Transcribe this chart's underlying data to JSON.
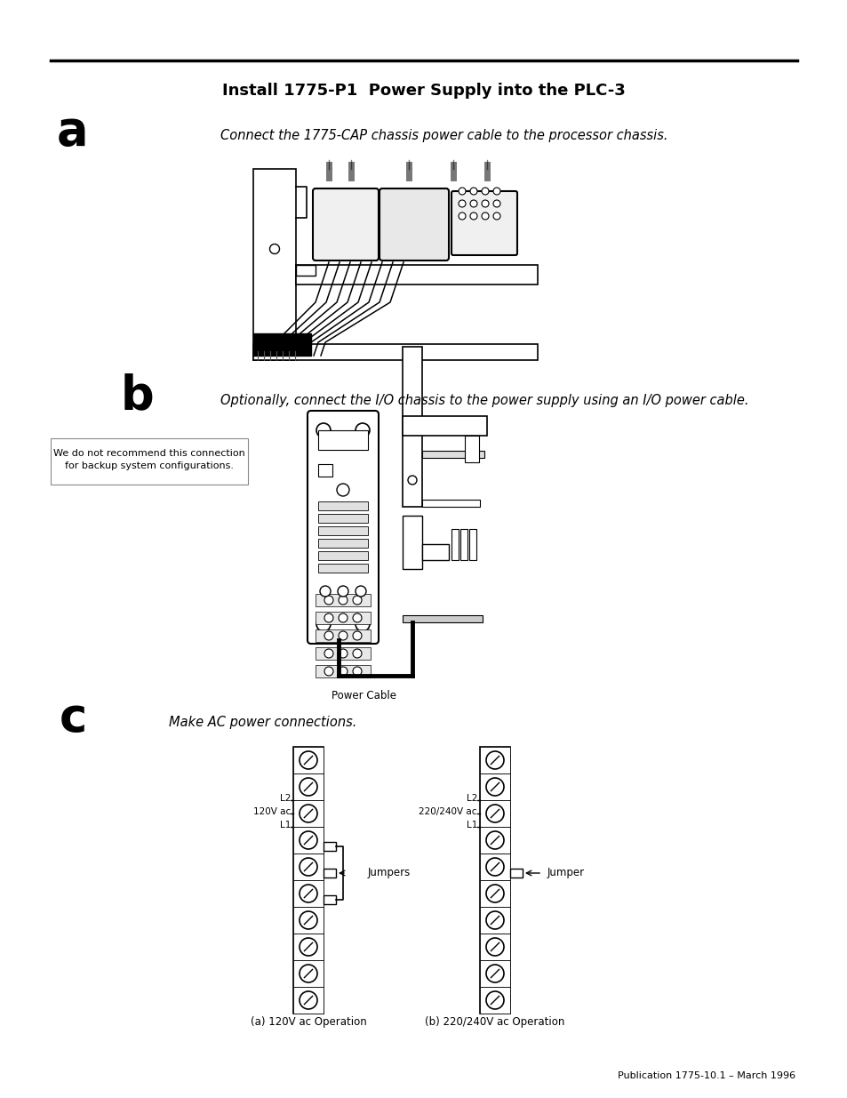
{
  "title": "Install 1775-P1  Power Supply into the PLC-3",
  "bg_color": "#ffffff",
  "text_color": "#000000",
  "section_a_label": "a",
  "section_a_text": "Connect the 1775-CAP chassis power cable to the processor chassis.",
  "section_b_label": "b",
  "section_b_text": "Optionally, connect the I/O chassis to the power supply using an I/O power cable.",
  "section_b_note": "We do not recommend this connection\nfor backup system configurations.",
  "section_c_label": "c",
  "section_c_text": "Make AC power connections.",
  "power_cable_label": "Power Cable",
  "caption_120v": "(a) 120V ac Operation",
  "caption_220v": "(b) 220/240V ac Operation",
  "jumpers_label": "Jumpers",
  "jumper_label": "Jumper",
  "label_120v_top": "L2",
  "label_120v_mid": "120V ac",
  "label_120v_bot": "L1",
  "label_220v_top": "L2",
  "label_220v_mid": "220/240V ac",
  "label_220v_bot": "L1",
  "footer": "Publication 1775-10.1 – March 1996"
}
